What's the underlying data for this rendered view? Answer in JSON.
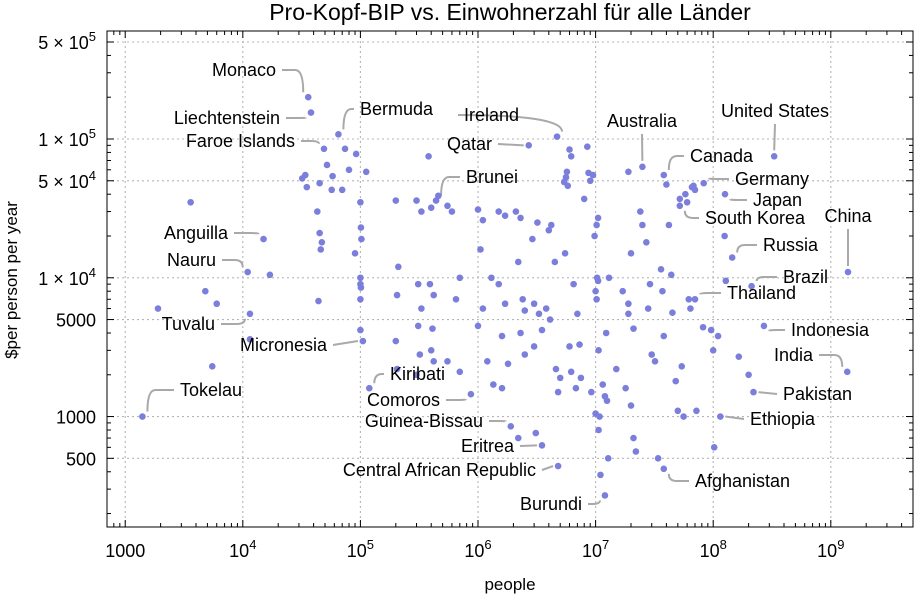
{
  "chart_data": {
    "type": "scatter",
    "title": "Pro-Kopf-BIP vs. Einwohnerzahl für alle Länder",
    "xlabel": "people",
    "ylabel": "$per person per year",
    "x_scale": "log",
    "y_scale": "log",
    "xlim": [
      700,
      5000000000
    ],
    "ylim": [
      160,
      600000
    ],
    "grid": true,
    "point_color": "#7b7fdb",
    "x_ticks": [
      {
        "value": 1000,
        "base": "1000",
        "exp": ""
      },
      {
        "value": 10000,
        "base": "10",
        "exp": "4"
      },
      {
        "value": 100000,
        "base": "10",
        "exp": "5"
      },
      {
        "value": 1000000,
        "base": "10",
        "exp": "6"
      },
      {
        "value": 10000000,
        "base": "10",
        "exp": "7"
      },
      {
        "value": 100000000,
        "base": "10",
        "exp": "8"
      },
      {
        "value": 1000000000,
        "base": "10",
        "exp": "9"
      }
    ],
    "y_ticks": [
      {
        "value": 500,
        "base": "500",
        "exp": ""
      },
      {
        "value": 1000,
        "base": "1000",
        "exp": ""
      },
      {
        "value": 5000,
        "base": "5000",
        "exp": ""
      },
      {
        "value": 10000,
        "base": "1 × 10",
        "exp": "4"
      },
      {
        "value": 50000,
        "base": "5 × 10",
        "exp": "4"
      },
      {
        "value": 100000,
        "base": "1 × 10",
        "exp": "5"
      },
      {
        "value": 500000,
        "base": "5 × 10",
        "exp": "5"
      }
    ],
    "labeled_points": [
      {
        "name": "Monaco",
        "x": 36000,
        "y": 200000
      },
      {
        "name": "Liechtenstein",
        "x": 38000,
        "y": 155000
      },
      {
        "name": "Bermuda",
        "x": 65000,
        "y": 108000
      },
      {
        "name": "Faroe Islands",
        "x": 49000,
        "y": 85000
      },
      {
        "name": "Ireland",
        "x": 4700000,
        "y": 104000
      },
      {
        "name": "Qatar",
        "x": 2700000,
        "y": 90000
      },
      {
        "name": "Australia",
        "x": 25000000,
        "y": 63000
      },
      {
        "name": "United States",
        "x": 330000000,
        "y": 75000
      },
      {
        "name": "Canada",
        "x": 38000000,
        "y": 55000
      },
      {
        "name": "Germany",
        "x": 83000000,
        "y": 48000
      },
      {
        "name": "Japan",
        "x": 126000000,
        "y": 40000
      },
      {
        "name": "South Korea",
        "x": 52000000,
        "y": 33000
      },
      {
        "name": "China",
        "x": 1400000000,
        "y": 11000
      },
      {
        "name": "Russia",
        "x": 145000000,
        "y": 14000
      },
      {
        "name": "Brazil",
        "x": 212000000,
        "y": 8700
      },
      {
        "name": "Thailand",
        "x": 70000000,
        "y": 7000
      },
      {
        "name": "Indonesia",
        "x": 270000000,
        "y": 4500
      },
      {
        "name": "India",
        "x": 1380000000,
        "y": 2100
      },
      {
        "name": "Pakistan",
        "x": 220000000,
        "y": 1500
      },
      {
        "name": "Ethiopia",
        "x": 115000000,
        "y": 1000
      },
      {
        "name": "Afghanistan",
        "x": 38000000,
        "y": 420
      },
      {
        "name": "Burundi",
        "x": 12000000,
        "y": 270
      },
      {
        "name": "Central African Republic",
        "x": 4800000,
        "y": 440
      },
      {
        "name": "Eritrea",
        "x": 3500000,
        "y": 620
      },
      {
        "name": "Guinea-Bissau",
        "x": 1900000,
        "y": 850
      },
      {
        "name": "Comoros",
        "x": 870000,
        "y": 1450
      },
      {
        "name": "Kiribati",
        "x": 119000,
        "y": 1600
      },
      {
        "name": "Brunei",
        "x": 440000,
        "y": 36000
      },
      {
        "name": "Anguilla",
        "x": 15000,
        "y": 19000
      },
      {
        "name": "Nauru",
        "x": 11000,
        "y": 11000
      },
      {
        "name": "Tuvalu",
        "x": 11500,
        "y": 5500
      },
      {
        "name": "Micronesia",
        "x": 105000,
        "y": 3500
      },
      {
        "name": "Tokelau",
        "x": 1400,
        "y": 1000
      }
    ],
    "other_points": [
      [
        3600,
        35000
      ],
      [
        4800,
        8000
      ],
      [
        6000,
        6500
      ],
      [
        5500,
        2300
      ],
      [
        1900,
        6000
      ],
      [
        17000,
        10500
      ],
      [
        11500,
        3600
      ],
      [
        32000,
        52000
      ],
      [
        34000,
        55000
      ],
      [
        35000,
        45000
      ],
      [
        45000,
        48000
      ],
      [
        52000,
        65000
      ],
      [
        58000,
        54000
      ],
      [
        70000,
        43000
      ],
      [
        74000,
        85000
      ],
      [
        80000,
        60000
      ],
      [
        92000,
        78000
      ],
      [
        112000,
        58000
      ],
      [
        57000,
        43000
      ],
      [
        43000,
        30000
      ],
      [
        45000,
        21000
      ],
      [
        46000,
        16000
      ],
      [
        47000,
        18000
      ],
      [
        44000,
        6800
      ],
      [
        90000,
        15000
      ],
      [
        100000,
        35000
      ],
      [
        101000,
        23000
      ],
      [
        102000,
        19000
      ],
      [
        100000,
        10000
      ],
      [
        100000,
        9000
      ],
      [
        101000,
        8500
      ],
      [
        100000,
        7000
      ],
      [
        100000,
        4200
      ],
      [
        200000,
        36000
      ],
      [
        210000,
        12000
      ],
      [
        205000,
        7500
      ],
      [
        200000,
        3500
      ],
      [
        205000,
        2200
      ],
      [
        300000,
        36000
      ],
      [
        330000,
        30000
      ],
      [
        310000,
        9000
      ],
      [
        330000,
        6000
      ],
      [
        310000,
        4500
      ],
      [
        320000,
        2800
      ],
      [
        300000,
        2000
      ],
      [
        380000,
        75000
      ],
      [
        400000,
        32000
      ],
      [
        460000,
        39000
      ],
      [
        390000,
        9000
      ],
      [
        420000,
        7500
      ],
      [
        410000,
        4300
      ],
      [
        400000,
        3000
      ],
      [
        420000,
        2500
      ],
      [
        550000,
        33000
      ],
      [
        600000,
        30000
      ],
      [
        700000,
        10000
      ],
      [
        650000,
        7000
      ],
      [
        550000,
        2500
      ],
      [
        700000,
        2100
      ],
      [
        1000000,
        31000
      ],
      [
        1100000,
        26000
      ],
      [
        1050000,
        16000
      ],
      [
        1300000,
        10000
      ],
      [
        1100000,
        6000
      ],
      [
        1000000,
        4500
      ],
      [
        1200000,
        2500
      ],
      [
        1350000,
        1700
      ],
      [
        1500000,
        30000
      ],
      [
        1700000,
        28000
      ],
      [
        1500000,
        9000
      ],
      [
        1700000,
        6500
      ],
      [
        1600000,
        3800
      ],
      [
        1800000,
        2400
      ],
      [
        1600000,
        1600
      ],
      [
        2100000,
        30000
      ],
      [
        2300000,
        27000
      ],
      [
        2200000,
        13000
      ],
      [
        2400000,
        7000
      ],
      [
        2500000,
        5800
      ],
      [
        2300000,
        4000
      ],
      [
        2500000,
        2800
      ],
      [
        2200000,
        700
      ],
      [
        2900000,
        19000
      ],
      [
        3200000,
        25000
      ],
      [
        3000000,
        6500
      ],
      [
        3300000,
        5500
      ],
      [
        3500000,
        4200
      ],
      [
        3000000,
        3200
      ],
      [
        3100000,
        760
      ],
      [
        4000000,
        22000
      ],
      [
        4200000,
        24000
      ],
      [
        4500000,
        13000
      ],
      [
        3800000,
        6000
      ],
      [
        4100000,
        5000
      ],
      [
        4600000,
        2200
      ],
      [
        5000000,
        1900
      ],
      [
        4800000,
        1500
      ],
      [
        5600000,
        53000
      ],
      [
        5700000,
        58000
      ],
      [
        5400000,
        49000
      ],
      [
        5800000,
        46000
      ],
      [
        6000000,
        84000
      ],
      [
        6200000,
        75000
      ],
      [
        5500000,
        15000
      ],
      [
        6500000,
        9000
      ],
      [
        7000000,
        5500
      ],
      [
        6000000,
        3200
      ],
      [
        6200000,
        2100
      ],
      [
        6800000,
        1600
      ],
      [
        7300000,
        3300
      ],
      [
        7500000,
        1900
      ],
      [
        8500000,
        88000
      ],
      [
        8700000,
        57000
      ],
      [
        8000000,
        37000
      ],
      [
        9000000,
        50000
      ],
      [
        9500000,
        55000
      ],
      [
        10500000,
        27000
      ],
      [
        10200000,
        24000
      ],
      [
        9800000,
        20000
      ],
      [
        10300000,
        10000
      ],
      [
        10000000,
        8000
      ],
      [
        10200000,
        7000
      ],
      [
        10600000,
        3000
      ],
      [
        9200000,
        1500
      ],
      [
        10000000,
        1050
      ],
      [
        10800000,
        1000
      ],
      [
        10600000,
        800
      ],
      [
        11000000,
        380
      ],
      [
        10500000,
        9500
      ],
      [
        11500000,
        1700
      ],
      [
        12000000,
        1400
      ],
      [
        12500000,
        1300
      ],
      [
        12300000,
        4000
      ],
      [
        13000000,
        10000
      ],
      [
        12800000,
        500
      ],
      [
        15000000,
        2200
      ],
      [
        17000000,
        8000
      ],
      [
        19000000,
        6500
      ],
      [
        19000000,
        58000
      ],
      [
        19000000,
        5500
      ],
      [
        20000000,
        15000
      ],
      [
        21000000,
        4300
      ],
      [
        18000000,
        1600
      ],
      [
        20000000,
        1200
      ],
      [
        21000000,
        700
      ],
      [
        22000000,
        560
      ],
      [
        24000000,
        30000
      ],
      [
        25000000,
        24000
      ],
      [
        27000000,
        18000
      ],
      [
        29000000,
        9000
      ],
      [
        28000000,
        6000
      ],
      [
        30000000,
        2800
      ],
      [
        32000000,
        2500
      ],
      [
        34000000,
        500
      ],
      [
        36000000,
        11500
      ],
      [
        37000000,
        8000
      ],
      [
        38000000,
        3800
      ],
      [
        40000000,
        47000
      ],
      [
        42000000,
        24000
      ],
      [
        44000000,
        10500
      ],
      [
        45000000,
        5600
      ],
      [
        48000000,
        1800
      ],
      [
        50000000,
        1100
      ],
      [
        52000000,
        37000
      ],
      [
        54000000,
        2300
      ],
      [
        56000000,
        1000
      ],
      [
        58000000,
        40000
      ],
      [
        60000000,
        35000
      ],
      [
        62000000,
        7000
      ],
      [
        64000000,
        6000
      ],
      [
        66000000,
        45000
      ],
      [
        68000000,
        46000
      ],
      [
        70000000,
        43000
      ],
      [
        72000000,
        1100
      ],
      [
        82000000,
        4400
      ],
      [
        96000000,
        4200
      ],
      [
        100000000,
        3000
      ],
      [
        102000000,
        600
      ],
      [
        110000000,
        3800
      ],
      [
        125000000,
        20000
      ],
      [
        128000000,
        9500
      ],
      [
        165000000,
        2700
      ],
      [
        200000000,
        2000
      ]
    ]
  }
}
